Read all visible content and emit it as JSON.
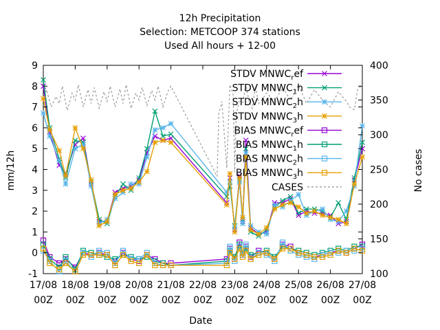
{
  "title_lines": [
    "12h Precipitation",
    "Selection: METCOOP     374 stations",
    "Used  All hours  + 12-00"
  ],
  "chart_data": {
    "type": "line",
    "xlabel": "Date",
    "ylabel": "mm/12h",
    "y2label": "No cases",
    "ylim": [
      -1,
      9
    ],
    "y2lim": [
      100,
      400
    ],
    "y_ticks": [
      "-1",
      "0",
      "1",
      "2",
      "3",
      "4",
      "5",
      "6",
      "7",
      "8",
      "9"
    ],
    "y2_ticks": [
      "100",
      "150",
      "200",
      "250",
      "300",
      "350",
      "400"
    ],
    "x_ticks": [
      {
        "top": "17/08",
        "bottom": "00Z"
      },
      {
        "top": "18/08",
        "bottom": "00Z"
      },
      {
        "top": "19/08",
        "bottom": "00Z"
      },
      {
        "top": "20/08",
        "bottom": "00Z"
      },
      {
        "top": "21/08",
        "bottom": "00Z"
      },
      {
        "top": "22/08",
        "bottom": "00Z"
      },
      {
        "top": "23/08",
        "bottom": "00Z"
      },
      {
        "top": "24/08",
        "bottom": "00Z"
      },
      {
        "top": "25/08",
        "bottom": "00Z"
      },
      {
        "top": "26/08",
        "bottom": "00Z"
      },
      {
        "top": "27/08",
        "bottom": "00Z"
      }
    ],
    "x_day_range": [
      0,
      10
    ],
    "legend_position": "top-right",
    "series": [
      {
        "name": "STDV MNWC",
        "sub": "r",
        "tail": "ef",
        "kind": "stdv",
        "marker": "x",
        "color": "#9400d3",
        "x": [
          0,
          0.2,
          0.5,
          0.7,
          1.0,
          1.25,
          1.5,
          1.75,
          2.0,
          2.25,
          2.5,
          2.75,
          3.0,
          3.25,
          3.5,
          3.75,
          4.0,
          5.75,
          5.85,
          6.0,
          6.15,
          6.25,
          6.35,
          6.5,
          6.75,
          7.0,
          7.25,
          7.5,
          7.75,
          8.0,
          8.25,
          8.5,
          8.75,
          9.0,
          9.25,
          9.5,
          9.75,
          10.0
        ],
        "y": [
          8.0,
          5.8,
          4.2,
          3.8,
          5.2,
          5.5,
          3.3,
          1.5,
          1.5,
          2.9,
          3.1,
          3.2,
          3.5,
          4.8,
          5.6,
          5.4,
          5.5,
          2.4,
          3.6,
          1.1,
          3.7,
          1.5,
          5.4,
          1.2,
          0.9,
          1.0,
          2.4,
          2.4,
          2.6,
          1.8,
          2.0,
          1.9,
          1.9,
          1.8,
          1.4,
          1.5,
          3.5,
          5.0
        ]
      },
      {
        "name": "STDV MNWC",
        "sub": "1",
        "tail": "h",
        "kind": "stdv",
        "marker": "x",
        "color": "#009e73",
        "x": [
          0,
          0.2,
          0.5,
          0.7,
          1.0,
          1.25,
          1.5,
          1.75,
          2.0,
          2.25,
          2.5,
          2.75,
          3.0,
          3.25,
          3.5,
          3.75,
          4.0,
          5.75,
          5.85,
          6.0,
          6.15,
          6.25,
          6.35,
          6.5,
          6.75,
          7.0,
          7.25,
          7.5,
          7.75,
          8.0,
          8.25,
          8.5,
          8.75,
          9.0,
          9.25,
          9.5,
          9.75,
          10.0
        ],
        "y": [
          8.3,
          6.0,
          4.5,
          3.6,
          5.4,
          5.3,
          3.4,
          1.6,
          1.4,
          2.7,
          3.3,
          3.0,
          3.6,
          5.0,
          6.8,
          5.6,
          5.7,
          2.7,
          3.2,
          1.3,
          3.5,
          1.6,
          5.0,
          1.0,
          0.8,
          1.1,
          2.2,
          2.5,
          2.7,
          1.9,
          2.1,
          2.1,
          2.0,
          1.7,
          2.4,
          1.6,
          3.6,
          5.3
        ]
      },
      {
        "name": "STDV MNWC",
        "sub": "2",
        "tail": "h",
        "kind": "stdv",
        "marker": "star",
        "color": "#56b4e9",
        "x": [
          0,
          0.2,
          0.5,
          0.7,
          1.0,
          1.25,
          1.5,
          1.75,
          2.0,
          2.25,
          2.5,
          2.75,
          3.0,
          3.25,
          3.5,
          3.75,
          4.0,
          5.75,
          5.85,
          6.0,
          6.15,
          6.25,
          6.35,
          6.5,
          6.75,
          7.0,
          7.25,
          7.5,
          7.75,
          8.0,
          8.25,
          8.5,
          8.75,
          9.0,
          9.25,
          9.5,
          9.75,
          10.0
        ],
        "y": [
          6.7,
          5.6,
          4.4,
          3.3,
          5.0,
          5.2,
          3.2,
          1.4,
          1.6,
          2.6,
          2.9,
          3.3,
          3.3,
          4.6,
          5.9,
          6.0,
          6.2,
          2.9,
          3.4,
          1.2,
          3.4,
          1.4,
          4.8,
          1.3,
          1.0,
          0.9,
          2.3,
          2.2,
          2.5,
          2.8,
          1.8,
          2.0,
          2.1,
          1.6,
          1.5,
          2.0,
          3.2,
          6.1
        ]
      },
      {
        "name": "STDV MNWC",
        "sub": "3",
        "tail": "h",
        "kind": "stdv",
        "marker": "star",
        "color": "#e69f00",
        "x": [
          0,
          0.2,
          0.5,
          0.7,
          1.0,
          1.25,
          1.5,
          1.75,
          2.0,
          2.25,
          2.5,
          2.75,
          3.0,
          3.25,
          3.5,
          3.75,
          4.0,
          5.75,
          5.85,
          6.0,
          6.15,
          6.25,
          6.35,
          6.5,
          6.75,
          7.0,
          7.25,
          7.5,
          7.75,
          8.0,
          8.25,
          8.5,
          8.75,
          9.0,
          9.25,
          9.5,
          9.75,
          10.0
        ],
        "y": [
          7.4,
          5.9,
          4.9,
          3.7,
          6.0,
          5.0,
          3.5,
          1.3,
          1.5,
          2.8,
          3.0,
          3.1,
          3.4,
          3.9,
          5.3,
          5.4,
          5.3,
          2.3,
          3.8,
          1.0,
          3.6,
          1.7,
          4.6,
          1.1,
          0.9,
          1.2,
          2.1,
          2.3,
          2.4,
          2.2,
          1.9,
          2.0,
          1.8,
          1.7,
          1.6,
          1.4,
          3.3,
          4.6
        ]
      },
      {
        "name": "BIAS MNWC",
        "sub": "r",
        "tail": "ef",
        "kind": "bias",
        "marker": "square",
        "color": "#9400d3",
        "x": [
          0,
          0.2,
          0.5,
          0.7,
          1.0,
          1.25,
          1.5,
          1.75,
          2.0,
          2.25,
          2.5,
          2.75,
          3.0,
          3.25,
          3.5,
          3.75,
          4.0,
          5.75,
          5.85,
          6.0,
          6.15,
          6.25,
          6.35,
          6.5,
          6.75,
          7.0,
          7.25,
          7.5,
          7.75,
          8.0,
          8.25,
          8.5,
          8.75,
          9.0,
          9.25,
          9.5,
          9.75,
          10.0
        ],
        "y": [
          0.6,
          -0.2,
          -0.5,
          -0.3,
          -0.7,
          0.0,
          -0.1,
          0.0,
          -0.1,
          -0.4,
          0.0,
          -0.3,
          -0.4,
          -0.1,
          -0.3,
          -0.5,
          -0.5,
          -0.3,
          0.2,
          -0.3,
          0.5,
          -0.1,
          0.3,
          -0.2,
          0.1,
          0.0,
          -0.3,
          0.4,
          0.3,
          0.0,
          -0.1,
          -0.2,
          -0.1,
          0.0,
          0.1,
          0.0,
          0.2,
          0.4
        ]
      },
      {
        "name": "BIAS MNWC",
        "sub": "1",
        "tail": "h",
        "kind": "bias",
        "marker": "square",
        "color": "#009e73",
        "x": [
          0,
          0.2,
          0.5,
          0.7,
          1.0,
          1.25,
          1.5,
          1.75,
          2.0,
          2.25,
          2.5,
          2.75,
          3.0,
          3.25,
          3.5,
          3.75,
          4.0,
          5.75,
          5.85,
          6.0,
          6.15,
          6.25,
          6.35,
          6.5,
          6.75,
          7.0,
          7.25,
          7.5,
          7.75,
          8.0,
          8.25,
          8.5,
          8.75,
          9.0,
          9.25,
          9.5,
          9.75,
          10.0
        ],
        "y": [
          0.4,
          -0.3,
          -0.7,
          -0.2,
          -0.8,
          0.1,
          0.0,
          -0.1,
          -0.2,
          -0.3,
          -0.1,
          -0.2,
          -0.3,
          -0.2,
          -0.4,
          -0.5,
          -0.6,
          -0.4,
          0.1,
          -0.2,
          0.4,
          0.0,
          0.2,
          -0.1,
          0.0,
          0.1,
          -0.2,
          0.3,
          0.2,
          0.1,
          0.0,
          -0.1,
          0.0,
          0.1,
          0.2,
          0.1,
          0.3,
          0.3
        ]
      },
      {
        "name": "BIAS MNWC",
        "sub": "2",
        "tail": "h",
        "kind": "bias",
        "marker": "square",
        "color": "#56b4e9",
        "x": [
          0,
          0.2,
          0.5,
          0.7,
          1.0,
          1.25,
          1.5,
          1.75,
          2.0,
          2.25,
          2.5,
          2.75,
          3.0,
          3.25,
          3.5,
          3.75,
          4.0,
          5.75,
          5.85,
          6.0,
          6.15,
          6.25,
          6.35,
          6.5,
          6.75,
          7.0,
          7.25,
          7.5,
          7.75,
          8.0,
          8.25,
          8.5,
          8.75,
          9.0,
          9.25,
          9.5,
          9.75,
          10.0
        ],
        "y": [
          0.1,
          -0.4,
          -0.9,
          -0.4,
          -0.9,
          0.0,
          -0.2,
          0.1,
          0.0,
          -0.5,
          0.1,
          -0.3,
          -0.3,
          0.0,
          -0.5,
          -0.6,
          -0.6,
          -0.5,
          0.3,
          -0.4,
          0.3,
          -0.1,
          0.4,
          -0.3,
          0.0,
          -0.1,
          -0.4,
          0.5,
          0.1,
          -0.1,
          -0.2,
          -0.3,
          -0.1,
          0.0,
          0.0,
          0.1,
          0.1,
          0.2
        ]
      },
      {
        "name": "BIAS MNWC",
        "sub": "3",
        "tail": "h",
        "kind": "bias",
        "marker": "square",
        "color": "#e69f00",
        "x": [
          0,
          0.2,
          0.5,
          0.7,
          1.0,
          1.25,
          1.5,
          1.75,
          2.0,
          2.25,
          2.5,
          2.75,
          3.0,
          3.25,
          3.5,
          3.75,
          4.0,
          5.75,
          5.85,
          6.0,
          6.15,
          6.25,
          6.35,
          6.5,
          6.75,
          7.0,
          7.25,
          7.5,
          7.75,
          8.0,
          8.25,
          8.5,
          8.75,
          9.0,
          9.25,
          9.5,
          9.75,
          10.0
        ],
        "y": [
          0.2,
          -0.5,
          -0.8,
          -0.5,
          -0.9,
          -0.1,
          -0.1,
          -0.1,
          -0.1,
          -0.6,
          -0.1,
          -0.4,
          -0.5,
          -0.1,
          -0.6,
          -0.6,
          -0.6,
          -0.6,
          0.0,
          -0.3,
          0.2,
          -0.2,
          0.1,
          -0.3,
          -0.1,
          0.0,
          -0.3,
          0.2,
          0.2,
          0.0,
          -0.1,
          -0.2,
          -0.2,
          -0.1,
          0.1,
          0.0,
          0.2,
          0.1
        ]
      },
      {
        "name": "CASES",
        "sub": "",
        "tail": "",
        "kind": "cases",
        "marker": "none",
        "color": "#999999",
        "x": [
          0,
          0.1,
          0.25,
          0.4,
          0.5,
          0.6,
          0.75,
          0.9,
          1.0,
          1.1,
          1.25,
          1.4,
          1.5,
          1.6,
          1.75,
          1.9,
          2.0,
          2.1,
          2.25,
          2.4,
          2.5,
          2.6,
          2.75,
          2.9,
          3.0,
          3.1,
          3.25,
          3.4,
          3.5,
          3.6,
          3.75,
          3.9,
          4.0,
          5.45,
          5.5,
          5.6,
          5.75,
          5.85,
          5.95,
          6.0,
          6.05,
          6.15,
          6.25,
          6.35,
          6.45,
          6.55,
          6.65,
          6.75,
          6.85,
          7.0,
          7.25,
          7.5,
          7.75,
          8.0,
          8.25,
          8.5,
          8.75,
          9.0,
          9.25,
          9.5,
          9.6,
          9.75,
          9.85,
          10.0
        ],
        "y": [
          350,
          365,
          340,
          355,
          345,
          370,
          335,
          360,
          350,
          372,
          340,
          365,
          345,
          368,
          338,
          362,
          348,
          370,
          340,
          366,
          345,
          372,
          338,
          360,
          350,
          368,
          342,
          364,
          350,
          370,
          340,
          362,
          370,
          240,
          330,
          348,
          252,
          372,
          358,
          246,
          330,
          350,
          345,
          372,
          348,
          338,
          370,
          345,
          350,
          360,
          348,
          368,
          350,
          372,
          345,
          365,
          350,
          340,
          362,
          348,
          340,
          336,
          365,
          372
        ]
      }
    ]
  }
}
